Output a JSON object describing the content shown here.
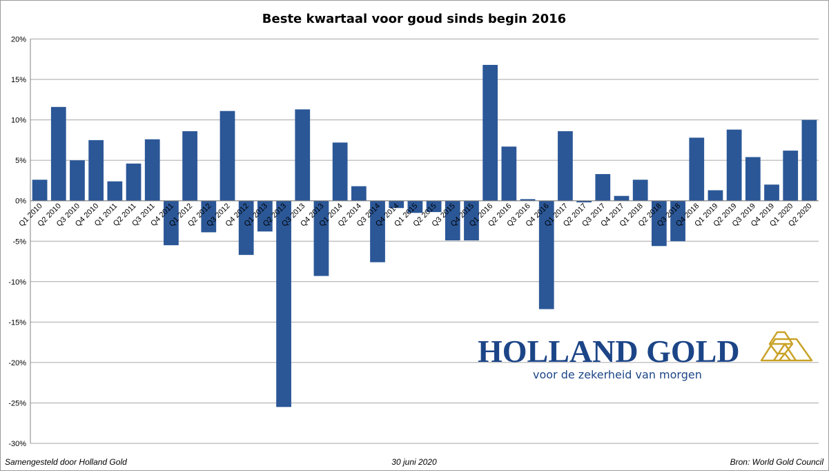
{
  "chart_data": {
    "type": "bar",
    "title": "Beste kwartaal voor goud sinds begin 2016",
    "xlabel": "",
    "ylabel": "",
    "ylim": [
      -30,
      20
    ],
    "ytick_labels": [
      "20%",
      "15%",
      "10%",
      "5%",
      "0%",
      "-5%",
      "-10%",
      "-15%",
      "-20%",
      "-25%",
      "-30%"
    ],
    "grid": true,
    "bar_color": "#2b5797",
    "categories": [
      "Q1 2010",
      "Q2 2010",
      "Q3 2010",
      "Q4 2010",
      "Q1 2011",
      "Q2 2011",
      "Q3 2011",
      "Q4 2011",
      "Q1 2012",
      "Q2 2012",
      "Q3 2012",
      "Q4 2012",
      "Q1 2013",
      "Q2 2013",
      "Q3 2013",
      "Q4 2013",
      "Q1 2014",
      "Q2 2014",
      "Q3 2014",
      "Q4 2014",
      "Q1 2015",
      "Q2 2015",
      "Q3 2015",
      "Q4 2015",
      "Q1 2016",
      "Q2 2016",
      "Q3 2016",
      "Q4 2016",
      "Q1 2017",
      "Q2 2017",
      "Q3 2017",
      "Q4 2017",
      "Q1 2018",
      "Q2 2018",
      "Q3 2018",
      "Q4 2018",
      "Q1 2019",
      "Q2 2019",
      "Q3 2019",
      "Q4 2019",
      "Q1 2020",
      "Q2 2020"
    ],
    "values": [
      2.6,
      11.6,
      5.0,
      7.5,
      2.4,
      4.6,
      7.6,
      -5.5,
      8.6,
      -3.9,
      11.1,
      -6.7,
      -3.8,
      -25.5,
      11.3,
      -9.3,
      7.2,
      1.8,
      -7.6,
      -0.9,
      -1.5,
      -1.4,
      -4.9,
      -4.9,
      16.8,
      6.7,
      0.2,
      -13.4,
      8.6,
      -0.2,
      3.3,
      0.6,
      2.6,
      -5.6,
      -5.0,
      7.8,
      1.3,
      8.8,
      5.4,
      2.0,
      6.2,
      10.0
    ]
  },
  "footer": {
    "left": "Samengesteld door Holland Gold",
    "center": "30 juni 2020",
    "right": "Bron: World Gold Council"
  },
  "logo": {
    "name": "HOLLAND GOLD",
    "tagline": "voor de zekerheid van morgen",
    "text_color": "#1c4587",
    "icon_color": "#c9a227"
  }
}
